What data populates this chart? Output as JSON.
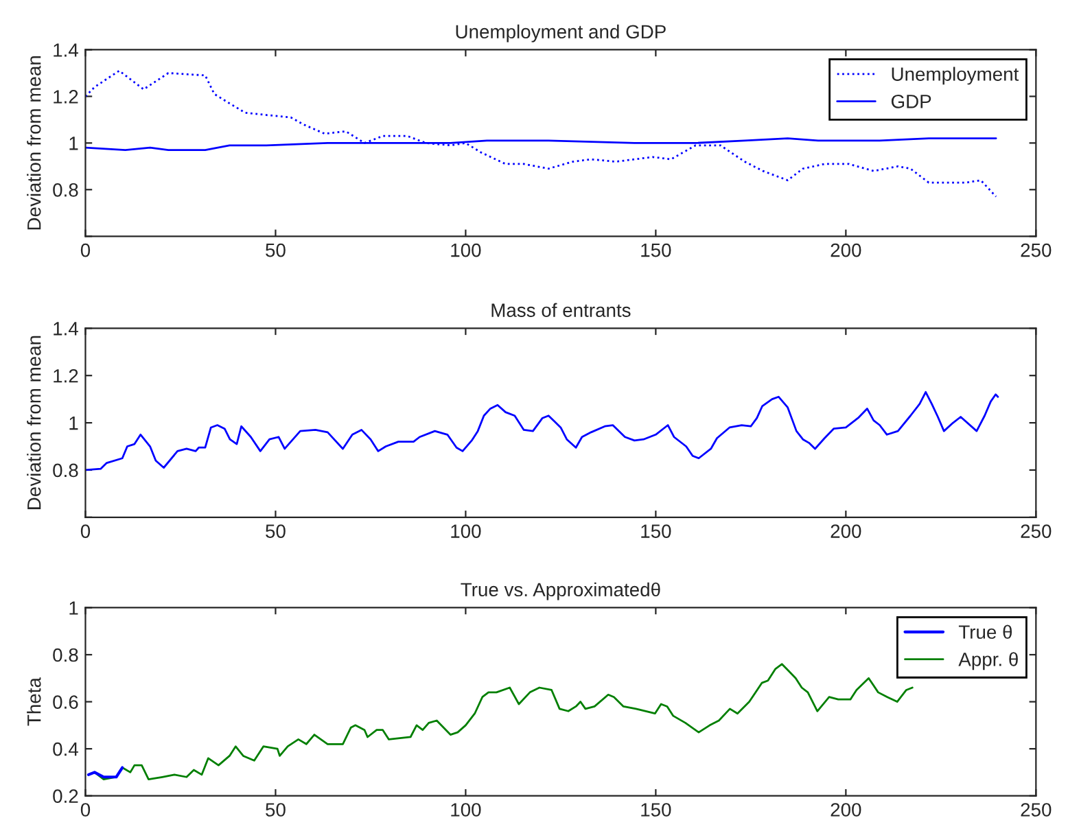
{
  "chart_data": [
    {
      "type": "line",
      "title": "Unemployment and GDP",
      "ylabel": "Deviation from mean",
      "xlim": [
        0,
        250
      ],
      "xticks": [
        0,
        50,
        100,
        150,
        200,
        250
      ],
      "ylim": [
        0.6,
        1.4
      ],
      "yticks": [
        {
          "value": 0.6,
          "label": null
        },
        0.8,
        1,
        1.2,
        1.4
      ],
      "grid": false,
      "legend": "top right",
      "marker": "none",
      "series": [
        {
          "name": "Unemployment",
          "color": "#0000ff",
          "line_style": "dotted",
          "x": [
            0,
            2.4,
            8.9,
            15.3,
            21.8,
            31.5,
            33.9,
            37.9,
            42,
            47.6,
            54,
            57.3,
            62.9,
            68.5,
            73.4,
            78.2,
            84.7,
            89.5,
            96,
            100,
            104,
            110.5,
            115.3,
            121.8,
            128.2,
            133,
            139.5,
            149.2,
            154,
            160.5,
            167,
            173.4,
            178.2,
            184.7,
            188.7,
            194.4,
            200.8,
            207.3,
            213.7,
            217,
            221.8,
            226.6,
            231.5,
            235.5,
            239.5
          ],
          "values": [
            1.2,
            1.24,
            1.31,
            1.23,
            1.3,
            1.29,
            1.21,
            1.17,
            1.13,
            1.12,
            1.11,
            1.08,
            1.04,
            1.05,
            1.0,
            1.03,
            1.03,
            1.0,
            0.99,
            1.0,
            0.96,
            0.91,
            0.91,
            0.89,
            0.92,
            0.93,
            0.92,
            0.94,
            0.93,
            0.99,
            0.99,
            0.92,
            0.88,
            0.84,
            0.89,
            0.91,
            0.91,
            0.88,
            0.9,
            0.89,
            0.83,
            0.83,
            0.83,
            0.84,
            0.77
          ]
        },
        {
          "name": "GDP",
          "color": "#0000ff",
          "line_style": "solid",
          "x": [
            0,
            10.5,
            17,
            21.8,
            31.5,
            37.9,
            47.6,
            63.7,
            79.8,
            96,
            105.6,
            121.8,
            144.4,
            160.5,
            173.4,
            184.7,
            192.7,
            208.9,
            221.8,
            239.5
          ],
          "values": [
            0.98,
            0.97,
            0.98,
            0.97,
            0.97,
            0.99,
            0.99,
            1.0,
            1.0,
            1.0,
            1.01,
            1.01,
            1.0,
            1.0,
            1.01,
            1.02,
            1.01,
            1.01,
            1.02,
            1.02
          ]
        }
      ]
    },
    {
      "type": "line",
      "title": "Mass of entrants",
      "ylabel": "Deviation from mean",
      "xlim": [
        0,
        250
      ],
      "xticks": [
        0,
        50,
        100,
        150,
        200,
        250
      ],
      "ylim": [
        0.6,
        1.4
      ],
      "yticks": [
        {
          "value": 0.6,
          "label": null
        },
        0.8,
        1,
        1.2,
        1.4
      ],
      "grid": false,
      "marker": "none",
      "series": [
        {
          "color": "#0000ff",
          "x": [
            0,
            4,
            5.6,
            9.7,
            11,
            12.9,
            14.5,
            17,
            18.5,
            20.6,
            24.2,
            26.6,
            29,
            29.8,
            31.5,
            33,
            34.7,
            36.6,
            38,
            39.8,
            41,
            43.5,
            46,
            48.4,
            50.8,
            52.4,
            56.5,
            60.5,
            63.7,
            67.7,
            70.2,
            72.6,
            75,
            77,
            79,
            82.3,
            86.3,
            87.9,
            91.9,
            95.2,
            97.6,
            99.2,
            101.6,
            103.2,
            104.8,
            106.5,
            108.4,
            110.5,
            112.9,
            115.3,
            117.7,
            120.2,
            121.8,
            123.4,
            125,
            126.6,
            129,
            130.6,
            133,
            136.6,
            138.7,
            141.9,
            144.4,
            146.8,
            150,
            153.2,
            154.8,
            158,
            159.7,
            161.3,
            164.5,
            166.1,
            169.4,
            172.6,
            175,
            176.6,
            178,
            180.6,
            182.3,
            184.7,
            187,
            188.7,
            190.3,
            191.9,
            194.4,
            196.8,
            200,
            203.2,
            205.6,
            207.3,
            208.9,
            210.8,
            213.7,
            217,
            219.4,
            221,
            222.6,
            224.2,
            225.8,
            228.2,
            230.2,
            234.4,
            236.5,
            238.1,
            239.4,
            240
          ],
          "values": [
            0.8,
            0.805,
            0.83,
            0.85,
            0.9,
            0.91,
            0.95,
            0.9,
            0.84,
            0.81,
            0.88,
            0.89,
            0.88,
            0.895,
            0.895,
            0.98,
            0.99,
            0.975,
            0.93,
            0.91,
            0.985,
            0.94,
            0.88,
            0.93,
            0.94,
            0.89,
            0.965,
            0.97,
            0.96,
            0.89,
            0.95,
            0.97,
            0.93,
            0.88,
            0.9,
            0.92,
            0.92,
            0.94,
            0.965,
            0.95,
            0.895,
            0.88,
            0.925,
            0.965,
            1.03,
            1.06,
            1.075,
            1.045,
            1.03,
            0.97,
            0.965,
            1.02,
            1.03,
            1.005,
            0.98,
            0.93,
            0.895,
            0.94,
            0.96,
            0.985,
            0.99,
            0.94,
            0.925,
            0.93,
            0.95,
            0.99,
            0.94,
            0.9,
            0.86,
            0.85,
            0.89,
            0.935,
            0.98,
            0.99,
            0.985,
            1.02,
            1.07,
            1.1,
            1.11,
            1.065,
            0.965,
            0.93,
            0.915,
            0.89,
            0.935,
            0.975,
            0.98,
            1.02,
            1.06,
            1.01,
            0.99,
            0.95,
            0.965,
            1.03,
            1.08,
            1.13,
            1.08,
            1.025,
            0.965,
            1.0,
            1.025,
            0.965,
            1.03,
            1.09,
            1.12,
            1.11
          ]
        }
      ]
    },
    {
      "type": "line",
      "title": "True vs. Approximatedθ",
      "ylabel": "Theta",
      "xlim": [
        0,
        250
      ],
      "xticks": [
        0,
        50,
        100,
        150,
        200,
        250
      ],
      "ylim": [
        0.2,
        1
      ],
      "yticks": [
        0.2,
        0.4,
        0.6,
        0.8,
        1
      ],
      "grid": false,
      "legend": "top right",
      "marker": "none",
      "series": [
        {
          "name": "True θ",
          "color": "#0000ff",
          "x": [
            0.8,
            2.4,
            4.8,
            8.1,
            9.7
          ],
          "values": [
            0.29,
            0.3,
            0.28,
            0.28,
            0.32
          ]
        },
        {
          "name": "Appr. θ",
          "color": "#007f00",
          "x": [
            0.8,
            2.4,
            4.8,
            8.1,
            9.7,
            11.8,
            12.9,
            14.8,
            16.6,
            20.2,
            23.4,
            26.6,
            28.5,
            30.6,
            32.3,
            35,
            37.9,
            39.5,
            41.5,
            44.4,
            46.8,
            50.5,
            51.1,
            53.2,
            56,
            58.1,
            60.2,
            63.7,
            67.7,
            69.8,
            71,
            73.4,
            74.2,
            76.6,
            78.2,
            79.8,
            85.5,
            87.1,
            88.7,
            90.3,
            92.4,
            96,
            97.9,
            100,
            102.4,
            104.4,
            106,
            108.1,
            111.6,
            114,
            116.9,
            119.4,
            122.6,
            124.7,
            127,
            129,
            130.2,
            131.5,
            133.9,
            137.5,
            139,
            141.5,
            144.8,
            147.4,
            149.8,
            151.4,
            153,
            154.6,
            157.8,
            161.3,
            164.2,
            166.6,
            169.5,
            171.5,
            174.6,
            177.9,
            179.5,
            181.5,
            183.2,
            184.4,
            186.8,
            188.4,
            190,
            192.5,
            195.6,
            198,
            201.2,
            202.8,
            206,
            208.5,
            210.9,
            213.5,
            215.9,
            217.5
          ],
          "values": [
            0.29,
            0.3,
            0.27,
            0.28,
            0.32,
            0.3,
            0.33,
            0.33,
            0.27,
            0.28,
            0.29,
            0.28,
            0.31,
            0.29,
            0.36,
            0.33,
            0.37,
            0.41,
            0.37,
            0.35,
            0.41,
            0.4,
            0.37,
            0.41,
            0.44,
            0.42,
            0.46,
            0.42,
            0.42,
            0.49,
            0.5,
            0.48,
            0.45,
            0.48,
            0.48,
            0.44,
            0.45,
            0.5,
            0.48,
            0.51,
            0.52,
            0.46,
            0.47,
            0.5,
            0.55,
            0.62,
            0.64,
            0.64,
            0.66,
            0.59,
            0.64,
            0.66,
            0.65,
            0.57,
            0.56,
            0.58,
            0.6,
            0.57,
            0.58,
            0.63,
            0.62,
            0.58,
            0.57,
            0.56,
            0.55,
            0.59,
            0.58,
            0.54,
            0.51,
            0.47,
            0.5,
            0.52,
            0.57,
            0.55,
            0.6,
            0.68,
            0.69,
            0.74,
            0.76,
            0.74,
            0.7,
            0.66,
            0.64,
            0.56,
            0.62,
            0.61,
            0.61,
            0.65,
            0.7,
            0.64,
            0.62,
            0.6,
            0.65,
            0.66
          ]
        }
      ]
    }
  ]
}
